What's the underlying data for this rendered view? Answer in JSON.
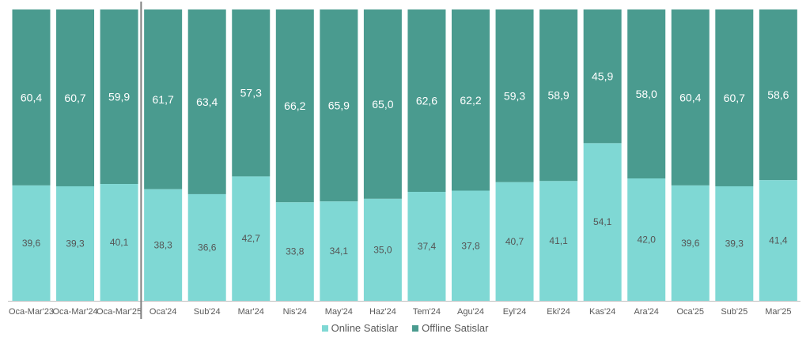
{
  "chart_data": {
    "type": "bar",
    "stacked": true,
    "percent_stacked": true,
    "categories": [
      "Oca-Mar'23",
      "Oca-Mar'24",
      "Oca-Mar'25",
      "Oca'24",
      "Sub'24",
      "Mar'24",
      "Nis'24",
      "May'24",
      "Haz'24",
      "Tem'24",
      "Agu'24",
      "Eyl'24",
      "Eki'24",
      "Kas'24",
      "Ara'24",
      "Oca'25",
      "Sub'25",
      "Mar'25"
    ],
    "series": [
      {
        "name": "Online Satislar",
        "color": "#7fd8d4",
        "values": [
          39.6,
          39.3,
          40.1,
          38.3,
          36.6,
          42.7,
          33.8,
          34.1,
          35.0,
          37.4,
          37.8,
          40.7,
          41.1,
          54.1,
          42.0,
          39.6,
          39.3,
          41.4
        ],
        "labels": [
          "39,6",
          "39,3",
          "40,1",
          "38,3",
          "36,6",
          "42,7",
          "33,8",
          "34,1",
          "35,0",
          "37,4",
          "37,8",
          "40,7",
          "41,1",
          "54,1",
          "42,0",
          "39,6",
          "39,3",
          "41,4"
        ]
      },
      {
        "name": "Offline Satislar",
        "color": "#4a9b8f",
        "values": [
          60.4,
          60.7,
          59.9,
          61.7,
          63.4,
          57.3,
          66.2,
          65.9,
          65.0,
          62.6,
          62.2,
          59.3,
          58.9,
          45.9,
          58.0,
          60.4,
          60.7,
          58.6
        ],
        "labels": [
          "60,4",
          "60,7",
          "59,9",
          "61,7",
          "63,4",
          "57,3",
          "66,2",
          "65,9",
          "65,0",
          "62,6",
          "62,2",
          "59,3",
          "58,9",
          "45,9",
          "58,0",
          "60,4",
          "60,7",
          "58,6"
        ]
      }
    ],
    "ylim": [
      0,
      100
    ],
    "grid": false,
    "separator_after_index": 2,
    "legend_position": "bottom"
  }
}
